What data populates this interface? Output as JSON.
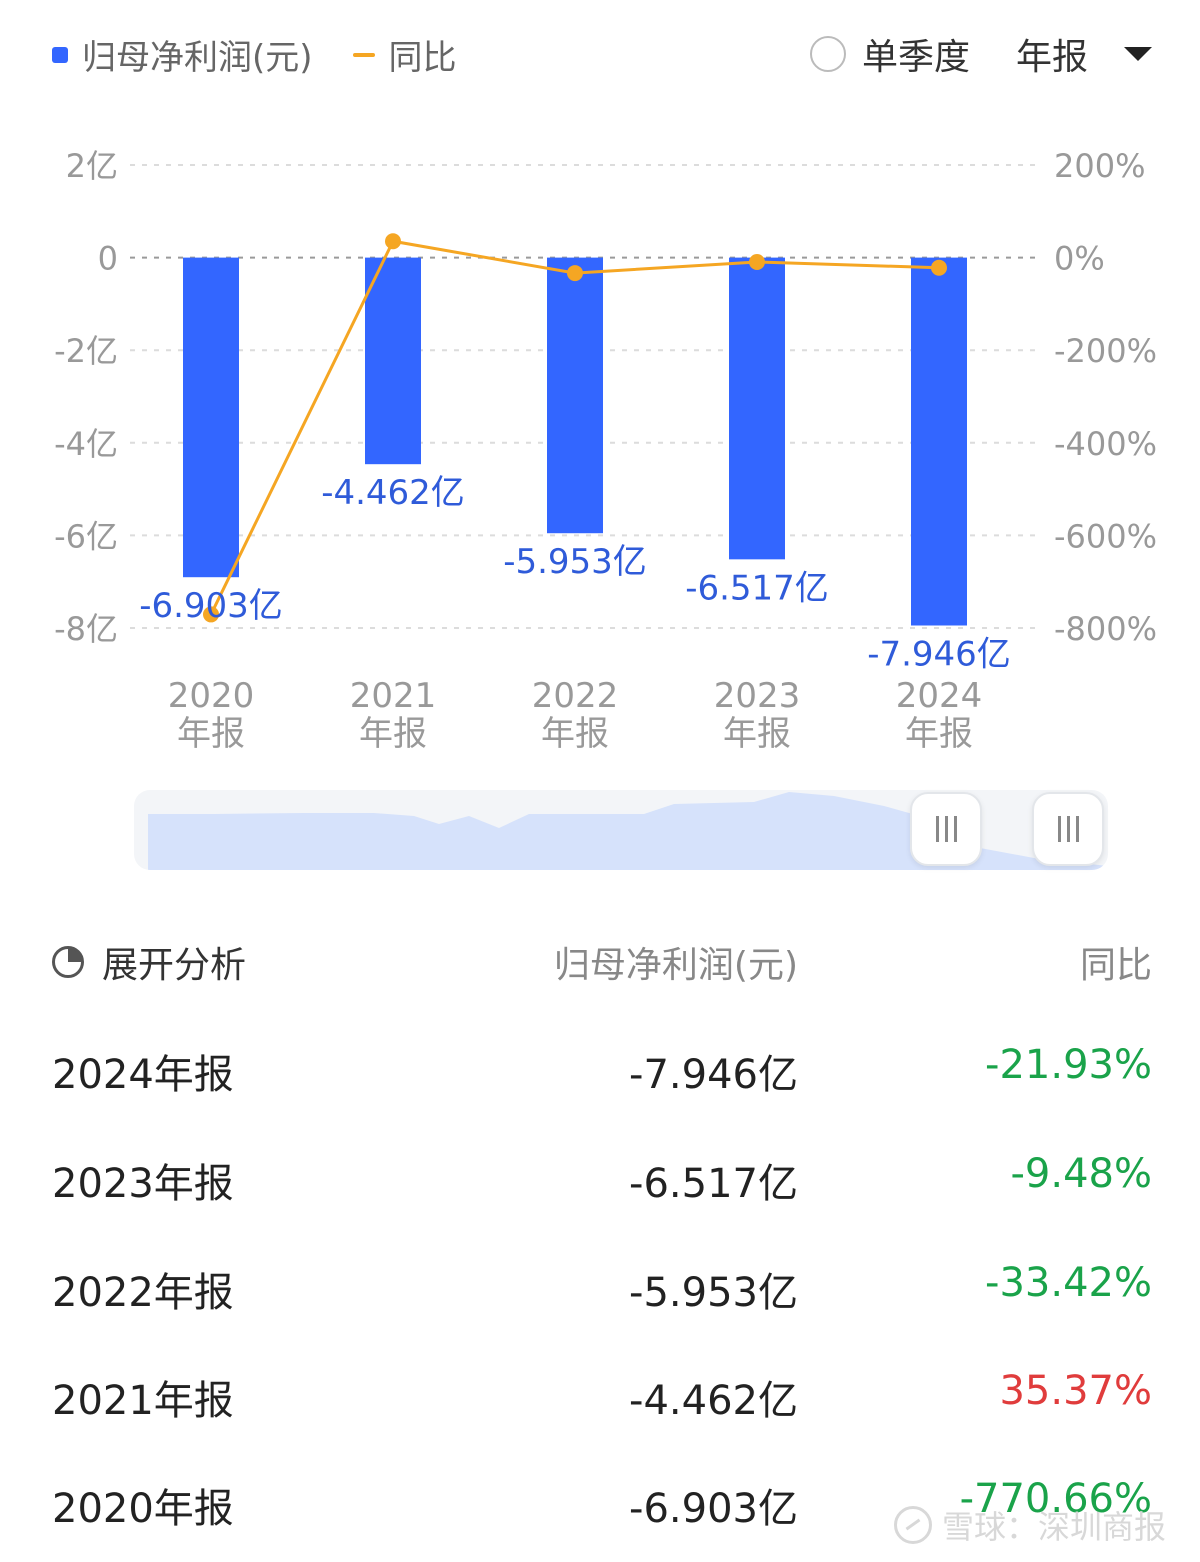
{
  "legend": {
    "bar_label": "归母净利润(元)",
    "line_label": "同比",
    "bar_color": "#3366ff",
    "line_color": "#f5a623"
  },
  "mode": {
    "quarter_label": "单季度",
    "period_label": "年报"
  },
  "chart_data": {
    "type": "bar",
    "categories": [
      [
        "2020",
        "年报"
      ],
      [
        "2021",
        "年报"
      ],
      [
        "2022",
        "年报"
      ],
      [
        "2023",
        "年报"
      ],
      [
        "2024",
        "年报"
      ]
    ],
    "series": [
      {
        "name": "归母净利润(元)",
        "type": "bar",
        "values": [
          -6.903,
          -4.462,
          -5.953,
          -6.517,
          -7.946
        ],
        "labels": [
          "-6.903亿",
          "-4.462亿",
          "-5.953亿",
          "-6.517亿",
          "-7.946亿"
        ]
      },
      {
        "name": "同比",
        "type": "line",
        "values": [
          -770.66,
          35.37,
          -33.42,
          -9.48,
          -21.93
        ]
      }
    ],
    "y_left": {
      "ticks": [
        2,
        0,
        -2,
        -4,
        -6,
        -8
      ],
      "tick_labels": [
        "2亿",
        "0",
        "-2亿",
        "-4亿",
        "-6亿",
        "-8亿"
      ],
      "range": [
        -8,
        2
      ]
    },
    "y_right": {
      "ticks": [
        200,
        0,
        -200,
        -400,
        -600,
        -800
      ],
      "tick_labels": [
        "200%",
        "0%",
        "-200%",
        "-400%",
        "-600%",
        "-800%"
      ],
      "range": [
        -800,
        200
      ]
    },
    "grid": true
  },
  "table": {
    "analysis_label": "展开分析",
    "value_header": "归母净利润(元)",
    "yoy_header": "同比",
    "rows": [
      {
        "period": "2024年报",
        "value": "-7.946亿",
        "yoy": "-21.93%",
        "yoy_color": "#1aa34a"
      },
      {
        "period": "2023年报",
        "value": "-6.517亿",
        "yoy": "-9.48%",
        "yoy_color": "#1aa34a"
      },
      {
        "period": "2022年报",
        "value": "-5.953亿",
        "yoy": "-33.42%",
        "yoy_color": "#1aa34a"
      },
      {
        "period": "2021年报",
        "value": "-4.462亿",
        "yoy": "35.37%",
        "yoy_color": "#e03c3c"
      },
      {
        "period": "2020年报",
        "value": "-6.903亿",
        "yoy": "-770.66%",
        "yoy_color": "#1aa34a"
      }
    ]
  },
  "watermark": "雪球：深圳商报"
}
